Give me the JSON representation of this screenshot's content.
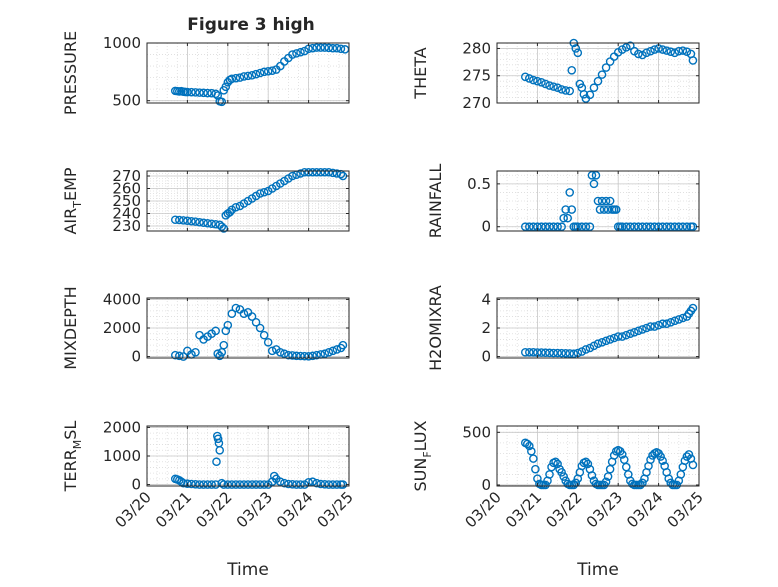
{
  "figure": {
    "title": "Figure 3 high"
  },
  "colors": {
    "marker": "#0072BD",
    "grid": "#dcdcdc",
    "axis": "#262626"
  },
  "chart_data": [
    {
      "id": "pressure",
      "type": "scatter",
      "title": "Figure 3 high",
      "xlabel": "",
      "ylabel": "PRESSURE",
      "ylim": [
        480,
        1000
      ],
      "yticks": [
        500,
        1000
      ],
      "ytick_labels": [
        "500",
        "1000"
      ],
      "xlim": [
        0,
        5
      ],
      "xticks": [
        0,
        1,
        2,
        3,
        4,
        5
      ],
      "xtick_labels": [],
      "grid": true,
      "x": [
        0.7,
        0.75,
        0.8,
        0.85,
        0.9,
        0.95,
        1.0,
        1.1,
        1.2,
        1.3,
        1.4,
        1.5,
        1.6,
        1.7,
        1.75,
        1.8,
        1.85,
        1.9,
        1.95,
        2.0,
        2.05,
        2.1,
        2.2,
        2.3,
        2.4,
        2.5,
        2.6,
        2.7,
        2.8,
        2.9,
        3.0,
        3.1,
        3.2,
        3.3,
        3.4,
        3.5,
        3.6,
        3.7,
        3.8,
        3.9,
        4.0,
        4.1,
        4.2,
        4.3,
        4.4,
        4.5,
        4.6,
        4.7,
        4.8,
        4.9
      ],
      "y": [
        585,
        583,
        580,
        582,
        578,
        576,
        575,
        574,
        572,
        570,
        568,
        566,
        565,
        560,
        545,
        495,
        490,
        590,
        620,
        660,
        680,
        690,
        695,
        700,
        710,
        715,
        720,
        730,
        740,
        750,
        755,
        760,
        770,
        800,
        840,
        870,
        900,
        910,
        920,
        930,
        950,
        955,
        960,
        960,
        960,
        958,
        955,
        955,
        950,
        945
      ]
    },
    {
      "id": "theta",
      "type": "scatter",
      "xlabel": "",
      "ylabel": "THETA",
      "ylim": [
        270,
        281
      ],
      "yticks": [
        270,
        275,
        280
      ],
      "ytick_labels": [
        "270",
        "275",
        "280"
      ],
      "xlim": [
        0,
        5
      ],
      "xticks": [
        0,
        1,
        2,
        3,
        4,
        5
      ],
      "xtick_labels": [],
      "grid": true,
      "x": [
        0.7,
        0.8,
        0.9,
        1.0,
        1.1,
        1.2,
        1.3,
        1.4,
        1.5,
        1.6,
        1.7,
        1.8,
        1.85,
        1.9,
        1.95,
        2.0,
        2.05,
        2.1,
        2.15,
        2.2,
        2.3,
        2.4,
        2.5,
        2.6,
        2.7,
        2.8,
        2.9,
        3.0,
        3.1,
        3.2,
        3.3,
        3.4,
        3.5,
        3.6,
        3.7,
        3.8,
        3.9,
        4.0,
        4.1,
        4.2,
        4.3,
        4.4,
        4.5,
        4.6,
        4.7,
        4.8,
        4.85
      ],
      "y": [
        274.8,
        274.5,
        274.2,
        274.0,
        273.8,
        273.5,
        273.2,
        273.0,
        272.8,
        272.5,
        272.3,
        272.2,
        276.0,
        281.0,
        280.0,
        279.2,
        273.5,
        272.8,
        271.6,
        270.8,
        271.5,
        272.8,
        274.0,
        275.2,
        276.5,
        277.6,
        278.5,
        279.3,
        279.8,
        280.2,
        280.5,
        279.5,
        279.0,
        278.8,
        279.2,
        279.5,
        279.8,
        280.0,
        279.8,
        279.6,
        279.4,
        279.2,
        279.5,
        279.6,
        279.4,
        279.0,
        277.8
      ]
    },
    {
      "id": "air_temp",
      "type": "scatter",
      "xlabel": "",
      "ylabel": "AIR_TEMP",
      "ylim": [
        226,
        274
      ],
      "yticks": [
        230,
        240,
        250,
        260,
        270
      ],
      "ytick_labels": [
        "230",
        "240",
        "250",
        "260",
        "270"
      ],
      "xlim": [
        0,
        5
      ],
      "xticks": [
        0,
        1,
        2,
        3,
        4,
        5
      ],
      "xtick_labels": [],
      "grid": true,
      "x": [
        0.7,
        0.8,
        0.9,
        1.0,
        1.1,
        1.2,
        1.3,
        1.4,
        1.5,
        1.6,
        1.7,
        1.8,
        1.85,
        1.9,
        1.95,
        2.0,
        2.05,
        2.1,
        2.2,
        2.3,
        2.4,
        2.5,
        2.6,
        2.7,
        2.8,
        2.9,
        3.0,
        3.1,
        3.2,
        3.3,
        3.4,
        3.5,
        3.6,
        3.7,
        3.8,
        3.9,
        4.0,
        4.1,
        4.2,
        4.3,
        4.4,
        4.5,
        4.6,
        4.7,
        4.8,
        4.85
      ],
      "y": [
        235,
        234.8,
        234.5,
        234.2,
        233.8,
        233.5,
        233.0,
        232.6,
        232.2,
        231.8,
        231.4,
        231.0,
        229.5,
        228.0,
        238.5,
        240,
        241,
        243,
        245,
        246,
        248,
        250,
        252,
        254,
        256,
        257,
        258,
        260,
        262,
        264,
        266,
        268,
        270,
        271,
        272,
        273,
        273,
        273,
        273,
        273,
        273,
        273,
        272.5,
        272,
        271.5,
        270
      ]
    },
    {
      "id": "rainfall",
      "type": "scatter",
      "xlabel": "",
      "ylabel": "RAINFALL",
      "ylim": [
        -0.05,
        0.65
      ],
      "yticks": [
        0,
        0.5
      ],
      "ytick_labels": [
        "0",
        "0.5"
      ],
      "xlim": [
        0,
        5
      ],
      "xticks": [
        0,
        1,
        2,
        3,
        4,
        5
      ],
      "xtick_labels": [],
      "grid": true,
      "x": [
        0.7,
        0.8,
        0.9,
        1.0,
        1.1,
        1.2,
        1.3,
        1.4,
        1.5,
        1.6,
        1.65,
        1.7,
        1.75,
        1.8,
        1.85,
        1.9,
        1.95,
        2.0,
        2.1,
        2.2,
        2.3,
        2.35,
        2.4,
        2.45,
        2.5,
        2.55,
        2.6,
        2.65,
        2.7,
        2.75,
        2.8,
        2.85,
        2.9,
        2.95,
        3.0,
        3.05,
        3.1,
        3.2,
        3.3,
        3.4,
        3.5,
        3.6,
        3.7,
        3.8,
        3.9,
        4.0,
        4.1,
        4.2,
        4.3,
        4.4,
        4.5,
        4.6,
        4.7,
        4.8,
        4.85
      ],
      "y": [
        0,
        0,
        0,
        0,
        0,
        0,
        0,
        0,
        0,
        0,
        0.1,
        0.2,
        0.1,
        0.4,
        0.2,
        0,
        0,
        0,
        0,
        0,
        0,
        0.6,
        0.5,
        0.6,
        0.3,
        0.2,
        0.3,
        0.2,
        0.3,
        0.2,
        0.3,
        0.2,
        0.2,
        0.2,
        0,
        0,
        0,
        0,
        0,
        0,
        0,
        0,
        0,
        0,
        0,
        0,
        0,
        0,
        0,
        0,
        0,
        0,
        0,
        0,
        0
      ]
    },
    {
      "id": "mixdepth",
      "type": "scatter",
      "xlabel": "",
      "ylabel": "MIXDEPTH",
      "ylim": [
        -100,
        4100
      ],
      "yticks": [
        0,
        2000,
        4000
      ],
      "ytick_labels": [
        "0",
        "2000",
        "4000"
      ],
      "xlim": [
        0,
        5
      ],
      "xticks": [
        0,
        1,
        2,
        3,
        4,
        5
      ],
      "xtick_labels": [],
      "grid": true,
      "x": [
        0.7,
        0.8,
        0.9,
        1.0,
        1.1,
        1.2,
        1.3,
        1.4,
        1.5,
        1.6,
        1.7,
        1.75,
        1.8,
        1.85,
        1.9,
        1.95,
        2.0,
        2.1,
        2.2,
        2.3,
        2.4,
        2.5,
        2.6,
        2.7,
        2.8,
        2.9,
        3.0,
        3.1,
        3.2,
        3.3,
        3.4,
        3.5,
        3.6,
        3.7,
        3.8,
        3.9,
        4.0,
        4.1,
        4.2,
        4.3,
        4.4,
        4.5,
        4.6,
        4.7,
        4.8,
        4.85
      ],
      "y": [
        100,
        50,
        0,
        400,
        150,
        300,
        1500,
        1200,
        1400,
        1600,
        1800,
        200,
        50,
        300,
        800,
        1800,
        2200,
        3000,
        3400,
        3300,
        3000,
        3100,
        2800,
        2400,
        2000,
        1500,
        1000,
        400,
        500,
        300,
        200,
        100,
        80,
        50,
        40,
        30,
        20,
        50,
        100,
        150,
        200,
        300,
        400,
        500,
        600,
        800
      ]
    },
    {
      "id": "h2omixra",
      "type": "scatter",
      "xlabel": "",
      "ylabel": "H2OMIXRA",
      "ylim": [
        -0.1,
        4.1
      ],
      "yticks": [
        0,
        2,
        4
      ],
      "ytick_labels": [
        "0",
        "2",
        "4"
      ],
      "xlim": [
        0,
        5
      ],
      "xticks": [
        0,
        1,
        2,
        3,
        4,
        5
      ],
      "xtick_labels": [],
      "grid": true,
      "x": [
        0.7,
        0.8,
        0.9,
        1.0,
        1.1,
        1.2,
        1.3,
        1.4,
        1.5,
        1.6,
        1.7,
        1.8,
        1.9,
        2.0,
        2.1,
        2.2,
        2.3,
        2.4,
        2.5,
        2.6,
        2.7,
        2.8,
        2.9,
        3.0,
        3.1,
        3.2,
        3.3,
        3.4,
        3.5,
        3.6,
        3.7,
        3.8,
        3.9,
        4.0,
        4.1,
        4.2,
        4.3,
        4.4,
        4.5,
        4.6,
        4.7,
        4.75,
        4.8,
        4.85
      ],
      "y": [
        0.3,
        0.3,
        0.3,
        0.28,
        0.28,
        0.27,
        0.26,
        0.25,
        0.25,
        0.24,
        0.23,
        0.22,
        0.2,
        0.25,
        0.35,
        0.5,
        0.6,
        0.75,
        0.9,
        1.0,
        1.1,
        1.2,
        1.3,
        1.4,
        1.4,
        1.5,
        1.6,
        1.7,
        1.8,
        1.9,
        2.0,
        2.1,
        2.1,
        2.2,
        2.3,
        2.3,
        2.4,
        2.5,
        2.6,
        2.7,
        2.8,
        3.0,
        3.2,
        3.4
      ]
    },
    {
      "id": "terr_msl",
      "type": "scatter",
      "xlabel": "Time",
      "ylabel": "TERR_MSL",
      "ylim": [
        -50,
        2050
      ],
      "yticks": [
        0,
        1000,
        2000
      ],
      "ytick_labels": [
        "0",
        "1000",
        "2000"
      ],
      "xlim": [
        0,
        5
      ],
      "xticks": [
        0,
        1,
        2,
        3,
        4,
        5
      ],
      "xtick_labels": [
        "03/20",
        "03/21",
        "03/22",
        "03/23",
        "03/24",
        "03/25"
      ],
      "grid": true,
      "x": [
        0.7,
        0.75,
        0.8,
        0.85,
        0.9,
        1.0,
        1.1,
        1.2,
        1.3,
        1.4,
        1.5,
        1.6,
        1.7,
        1.72,
        1.74,
        1.76,
        1.78,
        1.8,
        1.85,
        1.9,
        2.0,
        2.1,
        2.2,
        2.3,
        2.4,
        2.5,
        2.6,
        2.7,
        2.8,
        2.9,
        3.0,
        3.1,
        3.15,
        3.2,
        3.3,
        3.4,
        3.5,
        3.6,
        3.7,
        3.8,
        3.9,
        4.0,
        4.1,
        4.2,
        4.3,
        4.4,
        4.5,
        4.6,
        4.7,
        4.8,
        4.85
      ],
      "y": [
        200,
        180,
        150,
        100,
        50,
        30,
        20,
        10,
        0,
        0,
        0,
        0,
        0,
        800,
        1700,
        1600,
        1450,
        1200,
        50,
        0,
        0,
        0,
        0,
        0,
        0,
        0,
        0,
        0,
        0,
        0,
        0,
        100,
        300,
        200,
        100,
        50,
        20,
        10,
        0,
        0,
        0,
        80,
        100,
        50,
        20,
        10,
        0,
        0,
        0,
        0,
        0
      ]
    },
    {
      "id": "sun_flux",
      "type": "scatter",
      "xlabel": "Time",
      "ylabel": "SUN_FLUX",
      "ylim": [
        -10,
        560
      ],
      "yticks": [
        0,
        500
      ],
      "ytick_labels": [
        "0",
        "500"
      ],
      "xlim": [
        0,
        5
      ],
      "xticks": [
        0,
        1,
        2,
        3,
        4,
        5
      ],
      "xtick_labels": [
        "03/20",
        "03/21",
        "03/22",
        "03/23",
        "03/24",
        "03/25"
      ],
      "grid": true,
      "x": [
        0.7,
        0.75,
        0.8,
        0.85,
        0.9,
        0.95,
        1.0,
        1.05,
        1.1,
        1.15,
        1.2,
        1.25,
        1.3,
        1.35,
        1.4,
        1.45,
        1.5,
        1.55,
        1.6,
        1.65,
        1.7,
        1.75,
        1.8,
        1.85,
        1.9,
        1.95,
        2.0,
        2.05,
        2.1,
        2.15,
        2.2,
        2.25,
        2.3,
        2.35,
        2.4,
        2.45,
        2.5,
        2.55,
        2.6,
        2.65,
        2.7,
        2.75,
        2.8,
        2.85,
        2.9,
        2.95,
        3.0,
        3.05,
        3.1,
        3.15,
        3.2,
        3.25,
        3.3,
        3.35,
        3.4,
        3.45,
        3.5,
        3.55,
        3.6,
        3.65,
        3.7,
        3.75,
        3.8,
        3.85,
        3.9,
        3.95,
        4.0,
        4.05,
        4.1,
        4.15,
        4.2,
        4.25,
        4.3,
        4.35,
        4.4,
        4.45,
        4.5,
        4.55,
        4.6,
        4.65,
        4.7,
        4.75,
        4.8,
        4.85
      ],
      "y": [
        400,
        390,
        370,
        320,
        250,
        150,
        60,
        10,
        0,
        0,
        0,
        40,
        100,
        170,
        210,
        220,
        200,
        150,
        120,
        80,
        40,
        10,
        0,
        0,
        0,
        20,
        60,
        120,
        180,
        210,
        220,
        200,
        150,
        90,
        40,
        10,
        0,
        0,
        0,
        0,
        30,
        80,
        150,
        220,
        280,
        320,
        330,
        320,
        290,
        240,
        170,
        100,
        40,
        10,
        0,
        0,
        0,
        0,
        20,
        60,
        120,
        180,
        240,
        280,
        300,
        310,
        300,
        270,
        230,
        180,
        120,
        60,
        20,
        0,
        0,
        0,
        40,
        100,
        170,
        230,
        270,
        290,
        250,
        190
      ]
    }
  ]
}
